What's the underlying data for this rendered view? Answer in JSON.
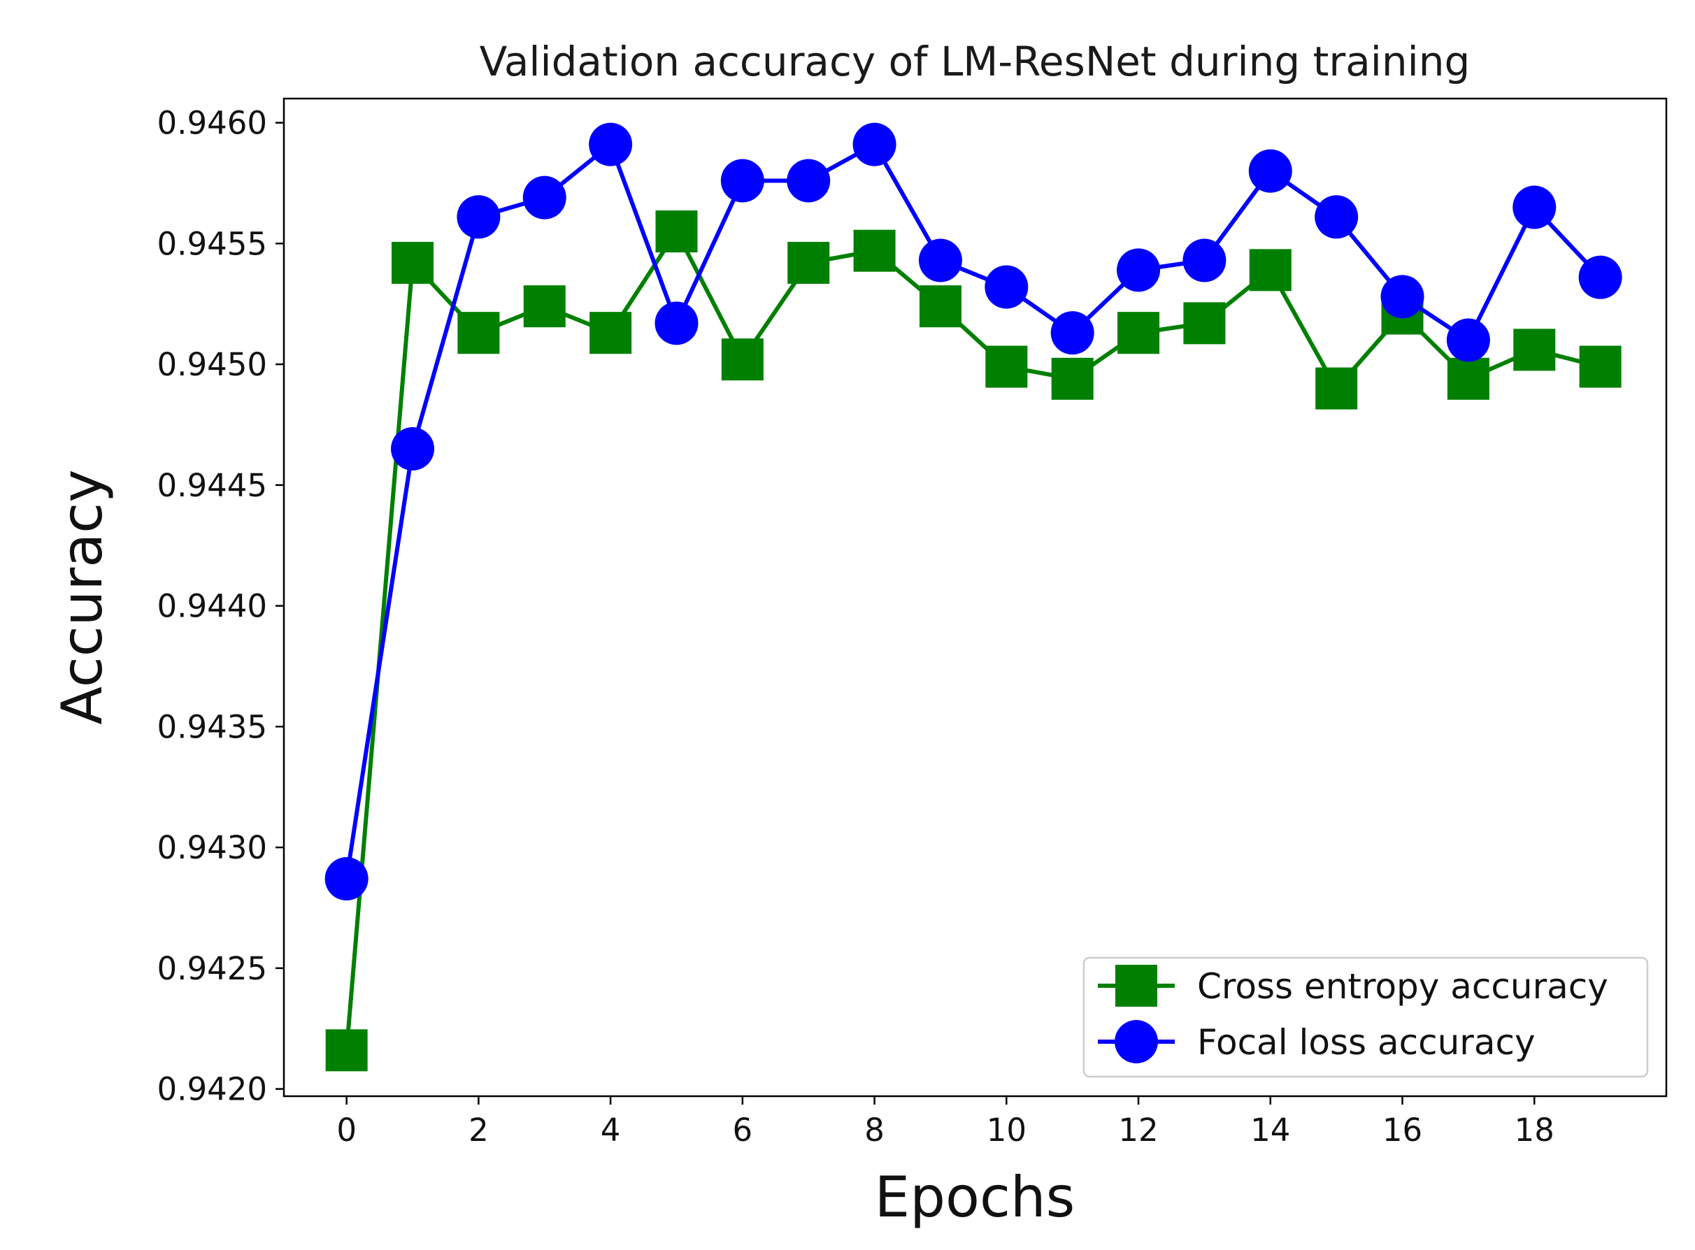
{
  "chart_data": {
    "type": "line",
    "title": "Validation accuracy of LM-ResNet during training",
    "xlabel": "Epochs",
    "ylabel": "Accuracy",
    "xlim": [
      -0.95,
      20.0
    ],
    "ylim": [
      0.94197,
      0.9461
    ],
    "xticks": [
      0,
      2,
      4,
      6,
      8,
      10,
      12,
      14,
      16,
      18
    ],
    "xtick_labels": [
      "0",
      "2",
      "4",
      "6",
      "8",
      "10",
      "12",
      "14",
      "16",
      "18"
    ],
    "yticks": [
      0.942,
      0.9425,
      0.943,
      0.9435,
      0.944,
      0.9445,
      0.945,
      0.9455,
      0.946
    ],
    "ytick_labels": [
      "0.9420",
      "0.9425",
      "0.9430",
      "0.9435",
      "0.9440",
      "0.9445",
      "0.9450",
      "0.9455",
      "0.9460"
    ],
    "grid": false,
    "legend_position": "bottom-right",
    "x": [
      0,
      1,
      2,
      3,
      4,
      5,
      6,
      7,
      8,
      9,
      10,
      11,
      12,
      13,
      14,
      15,
      16,
      17,
      18,
      19
    ],
    "series": [
      {
        "name": "Cross entropy accuracy",
        "color": "#008000",
        "marker": "square",
        "values": [
          0.94216,
          0.94542,
          0.94513,
          0.94524,
          0.94513,
          0.94555,
          0.94502,
          0.94542,
          0.94547,
          0.94524,
          0.94499,
          0.94494,
          0.94513,
          0.94517,
          0.94539,
          0.9449,
          0.94521,
          0.94494,
          0.94506,
          0.94499
        ]
      },
      {
        "name": "Focal loss accuracy",
        "color": "#0000ff",
        "marker": "circle",
        "values": [
          0.94287,
          0.94465,
          0.94561,
          0.94569,
          0.94591,
          0.94517,
          0.94576,
          0.94576,
          0.94591,
          0.94543,
          0.94532,
          0.94513,
          0.94539,
          0.94543,
          0.9458,
          0.94561,
          0.94528,
          0.9451,
          0.94565,
          0.94536
        ]
      }
    ]
  }
}
